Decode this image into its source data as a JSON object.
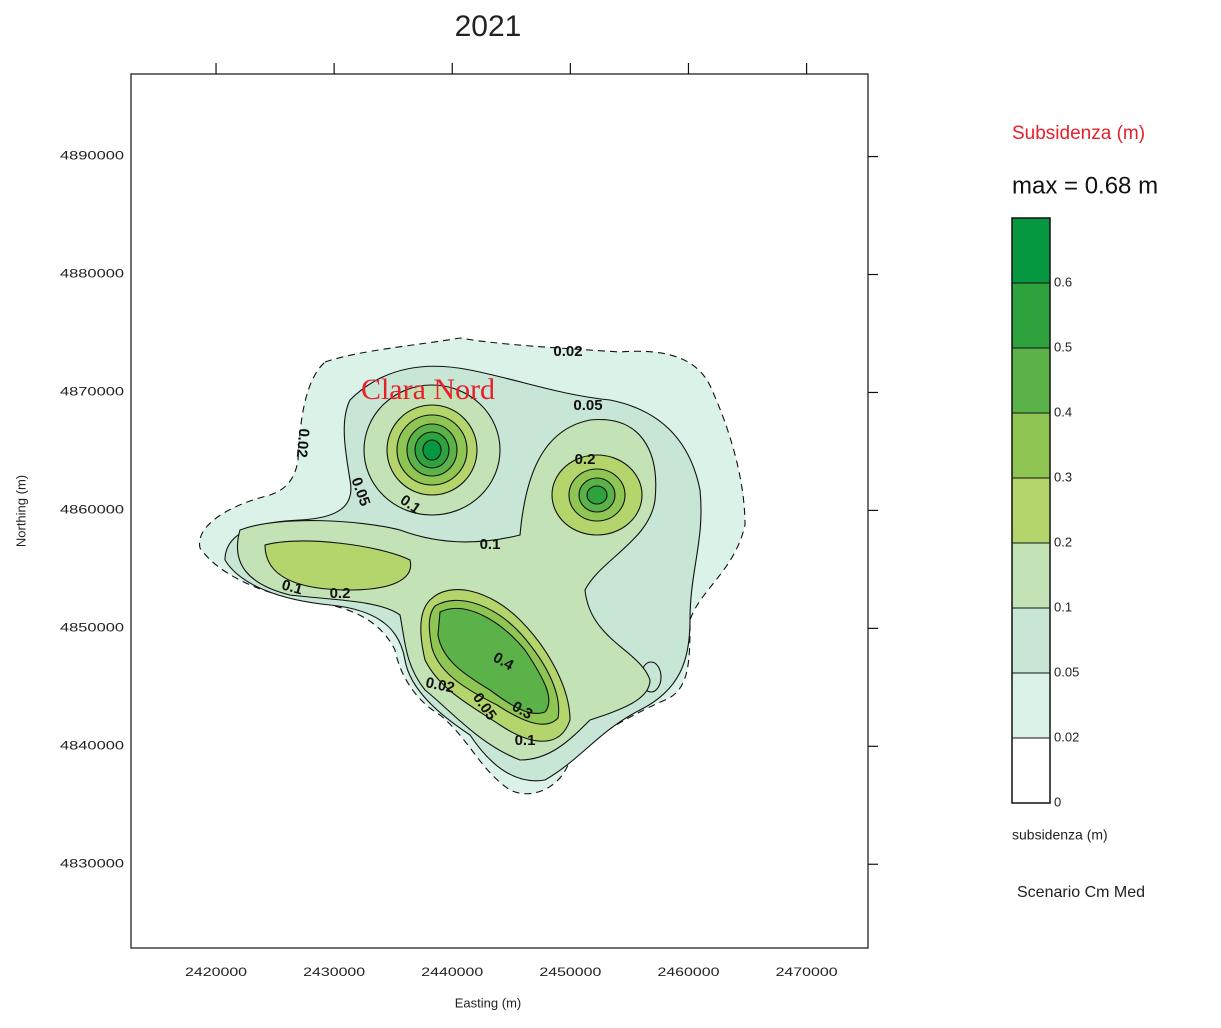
{
  "chart_data": {
    "type": "contour",
    "title": "2021",
    "x_label": "Easting (m)",
    "y_label": "Northing (m)",
    "xlim": [
      2412800,
      2475200
    ],
    "xticks": [
      2420000,
      2430000,
      2440000,
      2450000,
      2460000,
      2470000
    ],
    "ylim": [
      4822900,
      4897000
    ],
    "yticks": [
      4830000,
      4840000,
      4850000,
      4860000,
      4870000,
      4880000,
      4890000
    ],
    "levels": [
      0,
      0.02,
      0.05,
      0.1,
      0.2,
      0.3,
      0.4,
      0.5,
      0.6
    ],
    "colors": [
      "#ffffff",
      "#daf2e8",
      "#c8e6d5",
      "#c3e2b6",
      "#b4d56c",
      "#8fc552",
      "#5bb248",
      "#2ea23d",
      "#069840"
    ],
    "colorbar_title": "Subsidenza (m)",
    "max_label": "max = 0.68 m",
    "colorbar_label": "subsidenza (m)",
    "scenario": "Scenario Cm Med",
    "annotation": "Clara Nord",
    "contour_labels": [
      0.02,
      0.05,
      0.02,
      0.05,
      0.1,
      0.2,
      0.1,
      0.1,
      0.2,
      0.4,
      0.02,
      0.05,
      0.3,
      0.1
    ]
  }
}
